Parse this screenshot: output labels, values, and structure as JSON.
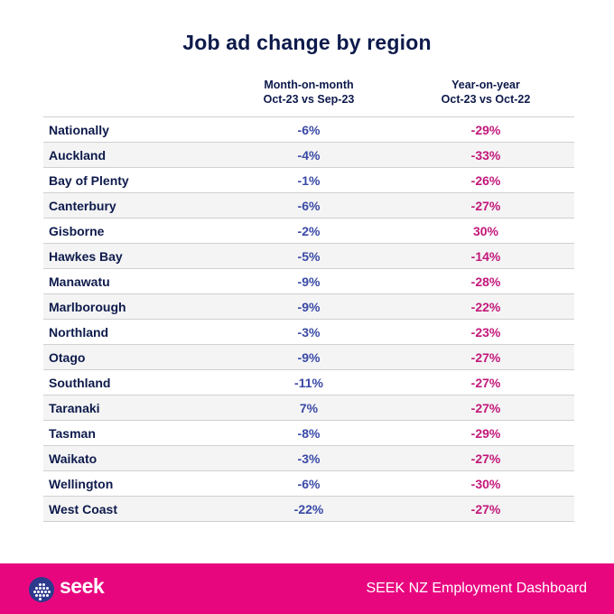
{
  "title": "Job ad change by region",
  "columns": {
    "mom": [
      "Month-on-month",
      "Oct-23 vs Sep-23"
    ],
    "yoy": [
      "Year-on-year",
      "Oct-23 vs Oct-22"
    ]
  },
  "chart_data": {
    "type": "table",
    "title": "Job ad change by region",
    "columns": [
      "Month-on-month Oct-23 vs Sep-23",
      "Year-on-year Oct-23 vs Oct-22"
    ],
    "rows": [
      {
        "region": "Nationally",
        "mom": "-6%",
        "yoy": "-29%"
      },
      {
        "region": "Auckland",
        "mom": "-4%",
        "yoy": "-33%"
      },
      {
        "region": "Bay of Plenty",
        "mom": "-1%",
        "yoy": "-26%"
      },
      {
        "region": "Canterbury",
        "mom": "-6%",
        "yoy": "-27%"
      },
      {
        "region": "Gisborne",
        "mom": "-2%",
        "yoy": "30%"
      },
      {
        "region": "Hawkes Bay",
        "mom": "-5%",
        "yoy": "-14%"
      },
      {
        "region": "Manawatu",
        "mom": "-9%",
        "yoy": "-28%"
      },
      {
        "region": "Marlborough",
        "mom": "-9%",
        "yoy": "-22%"
      },
      {
        "region": "Northland",
        "mom": "-3%",
        "yoy": "-23%"
      },
      {
        "region": "Otago",
        "mom": "-9%",
        "yoy": "-27%"
      },
      {
        "region": "Southland",
        "mom": "-11%",
        "yoy": "-27%"
      },
      {
        "region": "Taranaki",
        "mom": "7%",
        "yoy": "-27%"
      },
      {
        "region": "Tasman",
        "mom": "-8%",
        "yoy": "-29%"
      },
      {
        "region": "Waikato",
        "mom": "-3%",
        "yoy": "-27%"
      },
      {
        "region": "Wellington",
        "mom": "-6%",
        "yoy": "-30%"
      },
      {
        "region": "West Coast",
        "mom": "-22%",
        "yoy": "-27%"
      }
    ]
  },
  "footer": {
    "logo_text": "seek",
    "logo_icon": "seek-logo-icon",
    "caption": "SEEK NZ Employment Dashboard"
  },
  "colors": {
    "navy": "#0d1a4b",
    "mom_value": "#3a4aa6",
    "yoy_value": "#c2187a",
    "footer_bg": "#e8067f"
  }
}
